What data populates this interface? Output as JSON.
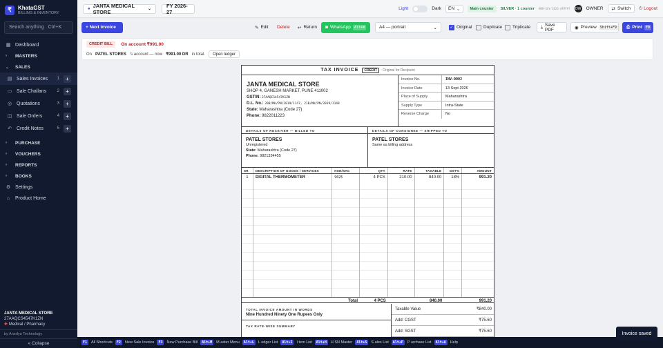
{
  "brand": {
    "name": "KhataGST",
    "subtitle": "BILLING & INVENTORY",
    "logo": "₹"
  },
  "search": {
    "placeholder": "Search anything",
    "shortcut": "Ctrl+K"
  },
  "nav": {
    "dashboard": "Dashboard",
    "masters": "MASTERS",
    "sales": "SALES",
    "sales_items": [
      {
        "label": "Sales Invoices",
        "count": "1"
      },
      {
        "label": "Sale Challans",
        "count": "2"
      },
      {
        "label": "Quotations",
        "count": "3"
      },
      {
        "label": "Sale Orders",
        "count": "4"
      },
      {
        "label": "Credit Notes",
        "count": "5"
      }
    ],
    "purchase": "PURCHASE",
    "vouchers": "VOUCHERS",
    "reports": "REPORTS",
    "books": "BOOKS",
    "settings": "Settings",
    "product_home": "Product Home"
  },
  "sidebar_footer": {
    "company": "JANTA MEDICAL STORE",
    "gstin": "27AAQCS4547K1ZN",
    "category": "Medical / Pharmacy",
    "by": "by Anedya Technology",
    "collapse": "« Collapse"
  },
  "topbar": {
    "company": "JANTA MEDICAL STORE",
    "fy": "FY 2026-27",
    "light": "Light",
    "dark": "Dark",
    "lang": "EN",
    "counter": "Main counter",
    "plan": "SILVER · 1 counter",
    "license": "ANB-SLV-2026-A8TF97",
    "avatar_initials": "OW",
    "role": "OWNER",
    "switch": "Switch",
    "logout": "Logout"
  },
  "toolbar": {
    "next_invoice": "+ Next invoice",
    "edit": "Edit",
    "delete": "Delete",
    "return": "Return",
    "whatsapp": "WhatsApp",
    "whatsapp_key": "Alt+W",
    "paper_size": "A4 — portrait",
    "original": "Original",
    "duplicate": "Duplicate",
    "triplicate": "Triplicate",
    "save_pdf": "Save PDF",
    "preview": "Preview",
    "preview_key": "Shift+F9",
    "print": "Print",
    "print_key": "F9"
  },
  "credit_bill": {
    "tag": "CREDIT BILL",
    "on_account": "On account ₹991.00",
    "line_pre": "On",
    "party": "PATEL STORES",
    "line_mid": "'s account — now",
    "amount": "₹991.00 DR",
    "line_post": "in total.",
    "open_ledger": "Open ledger"
  },
  "invoice": {
    "title": "TAX INVOICE",
    "copy_badge": "CREDIT",
    "recipient": "Original for Recipient",
    "seller": {
      "name": "JANTA MEDICAL STORE",
      "address": "SHOP 4, GANESH MARKET, PUNE 411002",
      "gstin_label": "GSTIN:",
      "gstin": "27AAQCS4547K1ZN",
      "dl_label": "D.L. No.:",
      "dl": "20B/MH/PN/2019/1147, 21B/MH/PN/2019/1148",
      "state_label": "State:",
      "state": "Maharashtra (Code 27)",
      "phone_label": "Phone:",
      "phone": "9822011223"
    },
    "meta": [
      {
        "k": "Invoice No.",
        "v": "INV-0002"
      },
      {
        "k": "Invoice Date",
        "v": "13 Sept 2026"
      },
      {
        "k": "Place of Supply",
        "v": "Maharashtra"
      },
      {
        "k": "Supply Type",
        "v": "Intra-State"
      },
      {
        "k": "Reverse Charge",
        "v": "No"
      }
    ],
    "receiver": {
      "heading": "DETAILS OF RECEIVER — BILLED TO",
      "name": "PATEL STORES",
      "status": "Unregistered",
      "state_label": "State:",
      "state": "Maharashtra (Code 27)",
      "phone_label": "Phone:",
      "phone": "9821334455"
    },
    "consignee": {
      "heading": "DETAILS OF CONSIGNEE — SHIPPED TO",
      "name": "PATEL STORES",
      "note": "Same as billing address"
    },
    "columns": [
      "SR",
      "DESCRIPTION OF GOODS / SERVICES",
      "HSN/SAC",
      "QTY",
      "RATE",
      "TAXABLE",
      "GST%",
      "AMOUNT"
    ],
    "rows": [
      {
        "sr": "1",
        "desc": "DIGITAL THERMOMETER",
        "hsn": "9025",
        "qty": "4 PCS",
        "rate": "210.00",
        "taxable": "840.00",
        "gst": "18%",
        "amount": "991.20"
      }
    ],
    "totals": {
      "label": "Total",
      "qty": "4 PCS",
      "taxable": "840.00",
      "amount": "991.20"
    },
    "words_heading": "TOTAL INVOICE AMOUNT IN WORDS",
    "words": "Nine Hundred Ninety One Rupees Only",
    "tax_summary_heading": "TAX RATE-WISE SUMMARY",
    "summary": [
      {
        "k": "Taxable Value",
        "v": "₹840.00"
      },
      {
        "k": "Add: CGST",
        "v": "₹75.60"
      },
      {
        "k": "Add: SGST",
        "v": "₹75.60"
      }
    ]
  },
  "statusbar": [
    {
      "key": "F1",
      "label": "All Shortcuts"
    },
    {
      "key": "F2",
      "label": "New Sale Invoice"
    },
    {
      "key": "F3",
      "label": "New Purchase Bill"
    },
    {
      "key": "Alt+M",
      "label": "M aster Menu"
    },
    {
      "key": "Alt+L",
      "label": "L edger List"
    },
    {
      "key": "Alt+I",
      "label": "I tem List"
    },
    {
      "key": "Alt+H",
      "label": "H SN Master"
    },
    {
      "key": "Alt+S",
      "label": "S ales List"
    },
    {
      "key": "Alt+P",
      "label": "P urchase List"
    },
    {
      "key": "Alt+A",
      "label": "Help"
    }
  ],
  "toast": "Invoice saved",
  "colors": {
    "accent": "#3b45e0",
    "sidebar": "#111a2e",
    "danger": "#d11d1d",
    "whatsapp": "#22c55e"
  }
}
